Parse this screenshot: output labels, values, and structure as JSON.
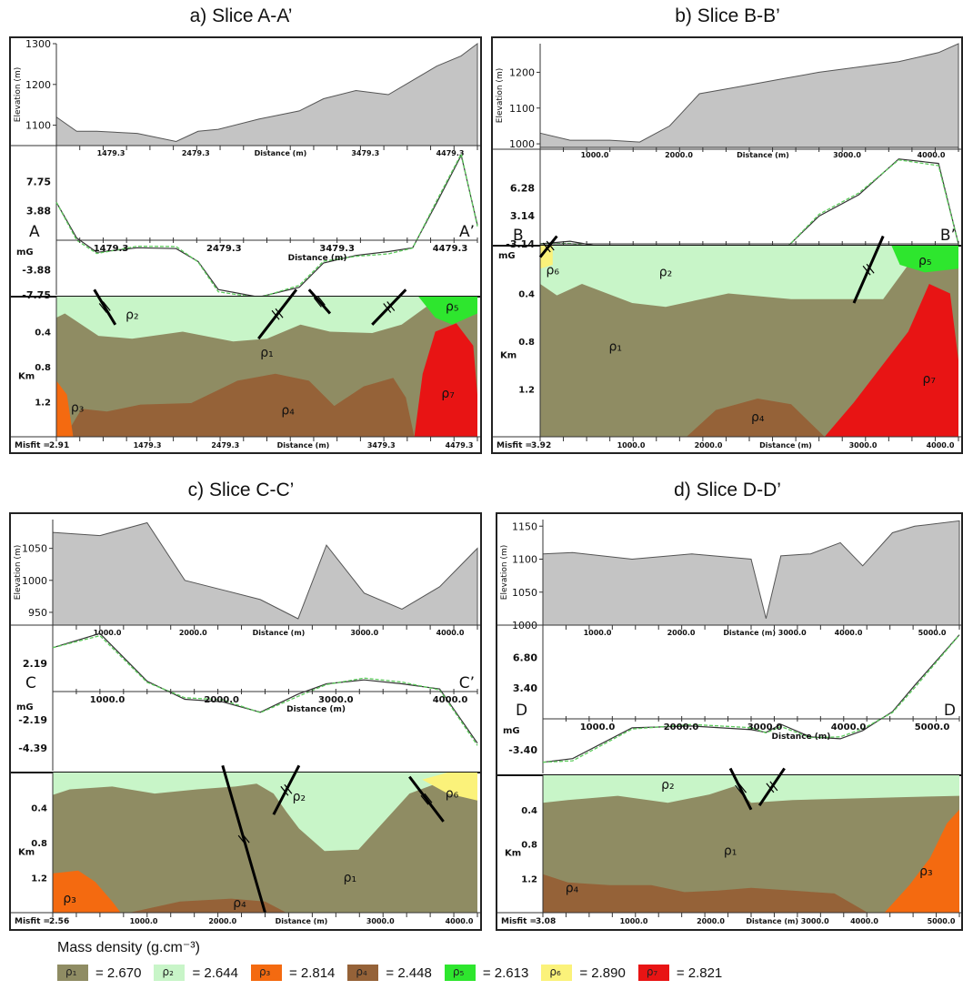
{
  "panels": [
    {
      "title": "a) Slice A-A’",
      "misfit": "2.91",
      "elev_ticks": [
        "1300",
        "1200",
        "1100"
      ],
      "elev_label": "Elevation (m)",
      "elev_axis": [
        "1479.3",
        "2479.3",
        "Distance (m)",
        "3479.3",
        "4479.3"
      ],
      "grav_ticks": [
        "7.75",
        "3.88",
        "-3.88",
        "-7.75"
      ],
      "grav_unit": "mG",
      "grav_axis": [
        "1479.3",
        "2479.3",
        "3479.3",
        "4479.3"
      ],
      "grav_axis_label": "Distance (m)",
      "start_label": "A",
      "end_label": "A’",
      "depth_ticks": [
        "0.4",
        "0.8",
        "1.2"
      ],
      "depth_unit": "Km",
      "bottom_axis": [
        "1479.3",
        "2479.3",
        "Distance (m)",
        "3479.3",
        "4479.3"
      ],
      "bodies": [
        "ρ₂",
        "ρ₅",
        "ρ₁",
        "ρ₃",
        "ρ₄",
        "ρ₇"
      ]
    },
    {
      "title": "b) Slice B-B’",
      "misfit": "3.92",
      "elev_ticks": [
        "1200",
        "1100",
        "1000"
      ],
      "elev_label": "Elevation (m)",
      "elev_axis": [
        "1000.0",
        "2000.0",
        "Distance (m)",
        "3000.0",
        "4000.0"
      ],
      "grav_ticks": [
        "6.28",
        "3.14",
        "-3.14"
      ],
      "grav_unit": "mG",
      "grav_axis": [
        "1000.0",
        "2000.0",
        "3000.0",
        "4000"
      ],
      "grav_axis_label": "Distance (m)",
      "start_label": "B",
      "end_label": "B’",
      "depth_ticks": [
        "0.4",
        "0.8",
        "1.2"
      ],
      "depth_unit": "Km",
      "bottom_axis": [
        "1000.0",
        "2000.0",
        "Distance (m)",
        "3000.0",
        "4000.0"
      ],
      "bodies": [
        "ρ₆",
        "ρ₂",
        "ρ₅",
        "ρ₁",
        "ρ₄",
        "ρ₇"
      ]
    },
    {
      "title": "c) Slice C-C’",
      "misfit": "2.56",
      "elev_ticks": [
        "1050",
        "1000",
        "950"
      ],
      "elev_label": "Elevation (m)",
      "elev_axis": [
        "1000.0",
        "2000.0",
        "Distance (m)",
        "3000.0",
        "4000.0"
      ],
      "grav_ticks": [
        "2.19",
        "-2.19",
        "-4.39"
      ],
      "grav_unit": "mG",
      "grav_axis": [
        "1000.0",
        "2000.0",
        "3000.0",
        "4000.0"
      ],
      "grav_axis_label": "Distance (m)",
      "start_label": "C",
      "end_label": "C’",
      "depth_ticks": [
        "0.4",
        "0.8",
        "1.2"
      ],
      "depth_unit": "Km",
      "bottom_axis": [
        "1000.0",
        "2000.0",
        "Distance (m)",
        "3000.0",
        "4000.0"
      ],
      "bodies": [
        "ρ₂",
        "ρ₆",
        "ρ₁",
        "ρ₃",
        "ρ₄"
      ]
    },
    {
      "title": "d) Slice D-D’",
      "misfit": "3.08",
      "elev_ticks": [
        "1150",
        "1100",
        "1050",
        "1000"
      ],
      "elev_label": "Elevation (m)",
      "elev_axis": [
        "1000.0",
        "2000.0",
        "Distance (m) 3000.0",
        "4000.0",
        "5000.0"
      ],
      "grav_ticks": [
        "6.80",
        "3.40",
        "-3.40"
      ],
      "grav_unit": "mG",
      "grav_axis": [
        "1000.0",
        "2000.0",
        "3000.0",
        "4000.0",
        "5000.0"
      ],
      "grav_axis_label": "Distance (m)",
      "start_label": "D",
      "end_label": "D",
      "depth_ticks": [
        "0.4",
        "0.8",
        "1.2"
      ],
      "depth_unit": "Km",
      "bottom_axis": [
        "1000.0",
        "2000.0",
        "Distance (m) 3000.0",
        "4000.0",
        "5000.0"
      ],
      "bodies": [
        "ρ₂",
        "ρ₁",
        "ρ₄",
        "ρ₃"
      ]
    }
  ],
  "legend": {
    "title": "Mass density (g.cm⁻³)",
    "items": [
      {
        "label": "ρ₁",
        "value": "= 2.670",
        "color": "#8f8c63"
      },
      {
        "label": "ρ₂",
        "value": "= 2.644",
        "color": "#c8f5c8"
      },
      {
        "label": "ρ₃",
        "value": "= 2.814",
        "color": "#f46a10"
      },
      {
        "label": "ρ₄",
        "value": "= 2.448",
        "color": "#956238"
      },
      {
        "label": "ρ₅",
        "value": "= 2.613",
        "color": "#2ee62e"
      },
      {
        "label": "ρ₆",
        "value": "= 2.890",
        "color": "#fbf27a"
      },
      {
        "label": "ρ₇",
        "value": "= 2.821",
        "color": "#e81414"
      }
    ]
  },
  "chart_data": [
    {
      "type": "area",
      "title": "a) Slice A-A’",
      "ylabel": "Elevation (m)",
      "ylim": [
        1050,
        1300
      ],
      "x": [
        0,
        250,
        500,
        1000,
        1479,
        1750,
        2000,
        2500,
        3000,
        3300,
        3700,
        4100,
        4400,
        4700,
        5000,
        5200
      ],
      "elevation": [
        1120,
        1085,
        1085,
        1080,
        1060,
        1085,
        1090,
        1115,
        1135,
        1165,
        1185,
        1175,
        1210,
        1245,
        1270,
        1300
      ],
      "gravity_observed": [
        5.0,
        0.3,
        -1.6,
        -1.0,
        -1.1,
        -2.8,
        -6.5,
        -7.5,
        -6.2,
        -3.0,
        -2.0,
        -1.5,
        -1.0,
        5.0,
        11.2,
        2.0
      ],
      "gravity_unit": "mG",
      "misfit": 2.91
    },
    {
      "type": "area",
      "title": "b) Slice B-B’",
      "ylabel": "Elevation (m)",
      "ylim": [
        990,
        1280
      ],
      "x": [
        0,
        300,
        700,
        1000,
        1300,
        1600,
        2000,
        2400,
        2800,
        3200,
        3600,
        4000,
        4200
      ],
      "elevation": [
        1030,
        1010,
        1010,
        1005,
        1050,
        1140,
        1160,
        1180,
        1200,
        1215,
        1230,
        1255,
        1280
      ],
      "gravity_observed": [
        0.0,
        0.3,
        -0.5,
        -1.3,
        -2.4,
        -4.2,
        -4.2,
        -1.2,
        3.1,
        5.5,
        9.5,
        9.0,
        0.0
      ],
      "gravity_unit": "mG",
      "misfit": 3.92
    },
    {
      "type": "area",
      "title": "c) Slice C-C’",
      "ylabel": "Elevation (m)",
      "ylim": [
        930,
        1095
      ],
      "x": [
        0,
        500,
        1000,
        1400,
        1800,
        2200,
        2600,
        2900,
        3300,
        3700,
        4100,
        4500
      ],
      "elevation": [
        1075,
        1070,
        1090,
        1000,
        985,
        970,
        940,
        1055,
        980,
        955,
        990,
        1050
      ],
      "gravity_observed": [
        3.4,
        4.5,
        0.8,
        -0.6,
        -0.8,
        -1.6,
        -0.2,
        0.6,
        0.9,
        0.6,
        0.2,
        -4.0
      ],
      "gravity_unit": "mG",
      "misfit": 2.56
    },
    {
      "type": "area",
      "title": "d) Slice D-D’",
      "ylabel": "Elevation (m)",
      "ylim": [
        1000,
        1160
      ],
      "x": [
        0,
        400,
        1200,
        2000,
        2800,
        3000,
        3200,
        3600,
        4000,
        4300,
        4700,
        5000,
        5600
      ],
      "elevation": [
        1108,
        1110,
        1100,
        1108,
        1100,
        1010,
        1105,
        1108,
        1125,
        1090,
        1140,
        1150,
        1158
      ],
      "gravity_observed": [
        -4.8,
        -4.4,
        -1.0,
        -0.8,
        -1.2,
        -1.5,
        -0.6,
        -2.0,
        -2.2,
        -1.3,
        0.8,
        3.7,
        9.3
      ],
      "gravity_unit": "mG",
      "misfit": 3.08
    }
  ]
}
